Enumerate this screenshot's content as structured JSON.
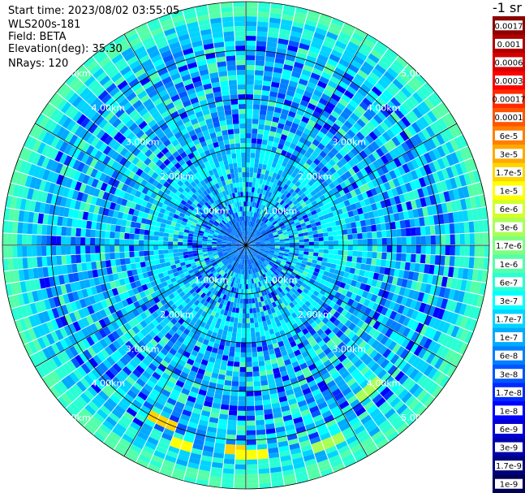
{
  "header": {
    "start_time": "Start time: 2023/08/02 03:55:05",
    "instrument": "WLS200s-181",
    "field": "Field: BETA",
    "elevation": "Elevation(deg): 35.30",
    "nrays": "NRays: 120"
  },
  "chart_data": {
    "type": "heatmap",
    "projection": "polar-ppi",
    "title": "",
    "range_unit": "km",
    "range_rings_km": [
      1,
      2,
      3,
      4,
      5
    ],
    "range_ring_labels": [
      "1.00km",
      "2.00km",
      "3.00km",
      "4.00km",
      "5.00km"
    ],
    "max_range_km": 5,
    "n_rays": 120,
    "n_gates": 50,
    "radial_spokes_deg": [
      0,
      30,
      60,
      90,
      120,
      150,
      180,
      210,
      240,
      270,
      300,
      330
    ],
    "hotspots": [
      {
        "azimuth_deg": 206,
        "range_km": 4.0,
        "level": 6
      },
      {
        "azimuth_deg": 198,
        "range_km": 4.3,
        "level": 5
      },
      {
        "azimuth_deg": 183,
        "range_km": 4.2,
        "level": 6
      },
      {
        "azimuth_deg": 178,
        "range_km": 4.3,
        "level": 5
      },
      {
        "azimuth_deg": 140,
        "range_km": 3.9,
        "level": 3
      },
      {
        "azimuth_deg": 158,
        "range_km": 4.4,
        "level": 3
      }
    ],
    "colorbar": {
      "label": "-1 sr",
      "ticks": [
        "0.0017",
        "0.001",
        "0.0006",
        "0.0003",
        "0.00017",
        "0.0001",
        "6e-5",
        "3e-5",
        "1.7e-5",
        "1e-5",
        "6e-6",
        "3e-6",
        "1.7e-6",
        "1e-6",
        "6e-7",
        "3e-7",
        "1.7e-7",
        "1e-7",
        "6e-8",
        "3e-8",
        "1.7e-8",
        "1e-8",
        "6e-9",
        "3e-9",
        "1.7e-9",
        "1e-9"
      ],
      "colors": [
        "#8b0000",
        "#b00000",
        "#d60000",
        "#ff0000",
        "#ff2a00",
        "#ff5500",
        "#ff7f00",
        "#ffaa00",
        "#ffd400",
        "#ffff00",
        "#d4ff2a",
        "#aaff55",
        "#7fff7f",
        "#55ffaa",
        "#2affd4",
        "#00ffff",
        "#00d4ff",
        "#00aaff",
        "#007fff",
        "#0055ff",
        "#002aff",
        "#0000ff",
        "#0000d4",
        "#0000aa",
        "#00007f",
        "#000055"
      ]
    }
  }
}
